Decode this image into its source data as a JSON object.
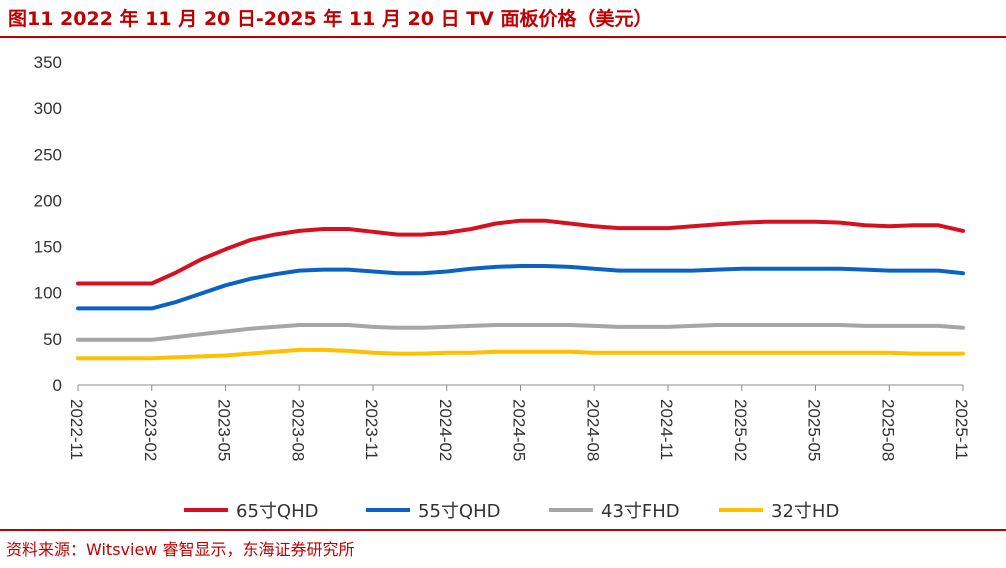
{
  "title": "图11  2022 年 11 月 20 日-2025 年 11 月 20 日 TV 面板价格（美元）",
  "source": "资料来源：Witsview 睿智显示，东海证券研究所",
  "chart_data": {
    "type": "line",
    "title": "图11  2022 年 11 月 20 日-2025 年 11 月 20 日 TV 面板价格（美元）",
    "xlabel": "",
    "ylabel": "",
    "ylim": [
      0,
      350
    ],
    "yticks": [
      0,
      50,
      100,
      150,
      200,
      250,
      300,
      350
    ],
    "x_ticks": [
      "2022-11",
      "2023-02",
      "2023-05",
      "2023-08",
      "2023-11",
      "2024-02",
      "2024-05",
      "2024-08",
      "2024-11",
      "2025-02",
      "2025-05",
      "2025-08",
      "2025-11"
    ],
    "grid": false,
    "legend_position": "bottom",
    "x": [
      "2022-11",
      "2022-12",
      "2023-01",
      "2023-02",
      "2023-03",
      "2023-04",
      "2023-05",
      "2023-06",
      "2023-07",
      "2023-08",
      "2023-09",
      "2023-10",
      "2023-11",
      "2023-12",
      "2024-01",
      "2024-02",
      "2024-03",
      "2024-04",
      "2024-05",
      "2024-06",
      "2024-07",
      "2024-08",
      "2024-09",
      "2024-10",
      "2024-11",
      "2024-12",
      "2025-01",
      "2025-02",
      "2025-03",
      "2025-04",
      "2025-05",
      "2025-06",
      "2025-07",
      "2025-08",
      "2025-09",
      "2025-10",
      "2025-11"
    ],
    "series": [
      {
        "name": "65寸QHD",
        "color": "#d7101f",
        "values": [
          110,
          110,
          110,
          110,
          122,
          136,
          147,
          157,
          163,
          167,
          169,
          169,
          166,
          163,
          163,
          165,
          169,
          175,
          178,
          178,
          175,
          172,
          170,
          170,
          170,
          172,
          174,
          176,
          177,
          177,
          177,
          176,
          173,
          172,
          173,
          173,
          167
        ]
      },
      {
        "name": "55寸QHD",
        "color": "#0a63c2",
        "values": [
          83,
          83,
          83,
          83,
          90,
          99,
          108,
          115,
          120,
          124,
          125,
          125,
          123,
          121,
          121,
          123,
          126,
          128,
          129,
          129,
          128,
          126,
          124,
          124,
          124,
          124,
          125,
          126,
          126,
          126,
          126,
          126,
          125,
          124,
          124,
          124,
          121
        ]
      },
      {
        "name": "43寸FHD",
        "color": "#a6a6a6",
        "values": [
          49,
          49,
          49,
          49,
          52,
          55,
          58,
          61,
          63,
          65,
          65,
          65,
          63,
          62,
          62,
          63,
          64,
          65,
          65,
          65,
          65,
          64,
          63,
          63,
          63,
          64,
          65,
          65,
          65,
          65,
          65,
          65,
          64,
          64,
          64,
          64,
          62
        ]
      },
      {
        "name": "32寸HD",
        "color": "#ffc000",
        "values": [
          29,
          29,
          29,
          29,
          30,
          31,
          32,
          34,
          36,
          38,
          38,
          37,
          35,
          34,
          34,
          35,
          35,
          36,
          36,
          36,
          36,
          35,
          35,
          35,
          35,
          35,
          35,
          35,
          35,
          35,
          35,
          35,
          35,
          35,
          34,
          34,
          34
        ]
      }
    ]
  }
}
